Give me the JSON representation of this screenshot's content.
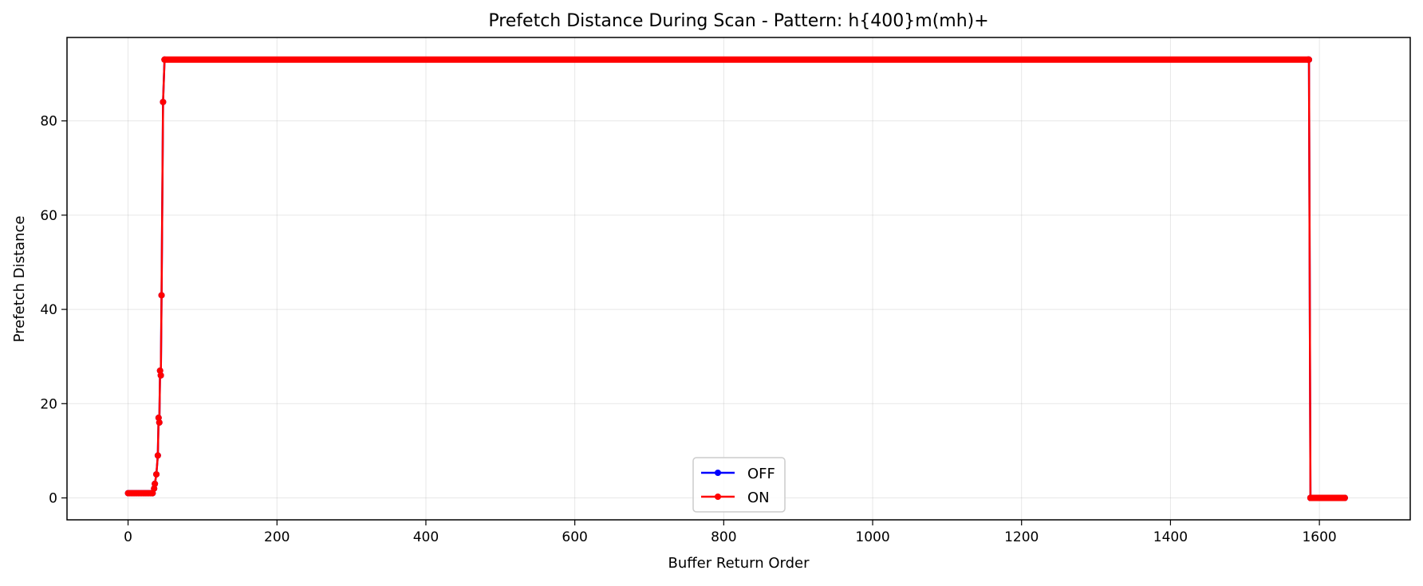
{
  "chart_data": {
    "type": "line",
    "title": "Prefetch Distance During Scan - Pattern: h{400}m(mh)+",
    "xlabel": "Buffer Return Order",
    "ylabel": "Prefetch Distance",
    "xlim": [
      -82,
      1722
    ],
    "ylim": [
      -4.65,
      97.7
    ],
    "xticks": [
      0,
      200,
      400,
      600,
      800,
      1000,
      1200,
      1400,
      1600
    ],
    "yticks": [
      0,
      20,
      40,
      60,
      80
    ],
    "grid": true,
    "legend_position": "lower center",
    "series": [
      {
        "name": "OFF",
        "color": "#0000ff",
        "marker": "circle",
        "x": [
          0,
          2,
          4,
          6,
          8,
          10,
          12,
          14,
          16,
          18,
          20,
          22,
          24,
          26,
          28,
          30,
          32,
          33,
          35,
          36,
          38,
          40,
          41,
          42,
          43,
          44,
          45,
          47,
          49,
          1585,
          1586,
          1588,
          1590,
          1592,
          1594,
          1596,
          1598,
          1600,
          1602,
          1604,
          1606,
          1608,
          1610,
          1612,
          1614,
          1616,
          1618,
          1620,
          1622,
          1624,
          1626,
          1628,
          1630,
          1632,
          1634
        ],
        "y": [
          1,
          1,
          1,
          1,
          1,
          1,
          1,
          1,
          1,
          1,
          1,
          1,
          1,
          1,
          1,
          1,
          1,
          1,
          2,
          3,
          5,
          9,
          17,
          16,
          27,
          26,
          43,
          84,
          93,
          93,
          93,
          0,
          0,
          0,
          0,
          0,
          0,
          0,
          0,
          0,
          0,
          0,
          0,
          0,
          0,
          0,
          0,
          0,
          0,
          0,
          0,
          0,
          0,
          0,
          0
        ]
      },
      {
        "name": "ON",
        "color": "#ff0000",
        "marker": "circle",
        "x": [
          0,
          2,
          4,
          6,
          8,
          10,
          12,
          14,
          16,
          18,
          20,
          22,
          24,
          26,
          28,
          30,
          32,
          33,
          35,
          36,
          38,
          40,
          41,
          42,
          43,
          44,
          45,
          47,
          49,
          1585,
          1586,
          1588,
          1590,
          1592,
          1594,
          1596,
          1598,
          1600,
          1602,
          1604,
          1606,
          1608,
          1610,
          1612,
          1614,
          1616,
          1618,
          1620,
          1622,
          1624,
          1626,
          1628,
          1630,
          1632,
          1634
        ],
        "y": [
          1,
          1,
          1,
          1,
          1,
          1,
          1,
          1,
          1,
          1,
          1,
          1,
          1,
          1,
          1,
          1,
          1,
          1,
          2,
          3,
          5,
          9,
          17,
          16,
          27,
          26,
          43,
          84,
          93,
          93,
          93,
          0,
          0,
          0,
          0,
          0,
          0,
          0,
          0,
          0,
          0,
          0,
          0,
          0,
          0,
          0,
          0,
          0,
          0,
          0,
          0,
          0,
          0,
          0,
          0
        ]
      }
    ],
    "plateau": {
      "series": "ON",
      "x_range": [
        49,
        1585
      ],
      "y": 93
    }
  }
}
